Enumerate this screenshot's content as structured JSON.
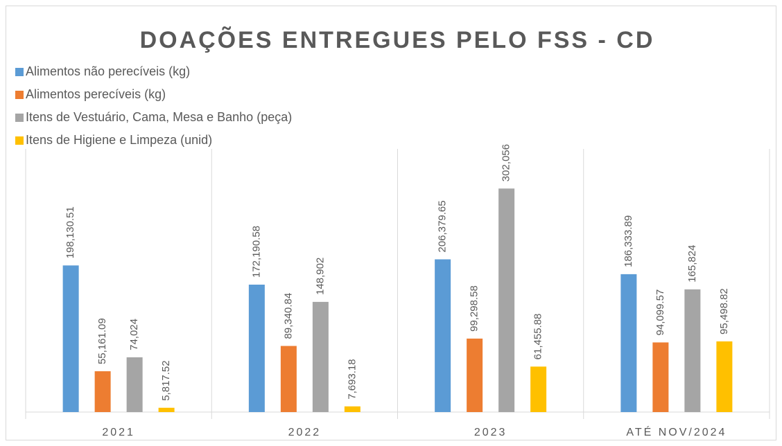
{
  "chart_data": {
    "type": "bar",
    "title": "DOAÇÕES ENTREGUES PELO FSS - CD",
    "categories": [
      "2021",
      "2022",
      "2023",
      "ATÉ NOV/2024"
    ],
    "series": [
      {
        "name": "Alimentos não perecíveis (kg)",
        "color": "#5b9bd5",
        "values": [
          198130.51,
          172190.58,
          206379.65,
          186333.89
        ],
        "value_labels": [
          "198,130.51",
          "172,190.58",
          "206,379.65",
          "186,333.89"
        ]
      },
      {
        "name": "Alimentos perecíveis (kg)",
        "color": "#ed7d31",
        "values": [
          55161.09,
          89340.84,
          99298.58,
          94099.57
        ],
        "value_labels": [
          "55,161.09",
          "89,340.84",
          "99,298.58",
          "94,099.57"
        ]
      },
      {
        "name": "Itens de Vestuário, Cama, Mesa e Banho (peça)",
        "color": "#a5a5a5",
        "values": [
          74024,
          148902,
          302056,
          165824
        ],
        "value_labels": [
          "74,024",
          "148,902",
          "302,056",
          "165,824"
        ]
      },
      {
        "name": "Itens de Higiene e Limpeza (unid)",
        "color": "#ffc000",
        "values": [
          5817.52,
          7693.18,
          61455.88,
          95498.82
        ],
        "value_labels": [
          "5,817.52",
          "7,693.18",
          "61,455.88",
          "95,498.82"
        ]
      }
    ],
    "ylim": [
      0,
      350000
    ],
    "legend": "top-left"
  }
}
